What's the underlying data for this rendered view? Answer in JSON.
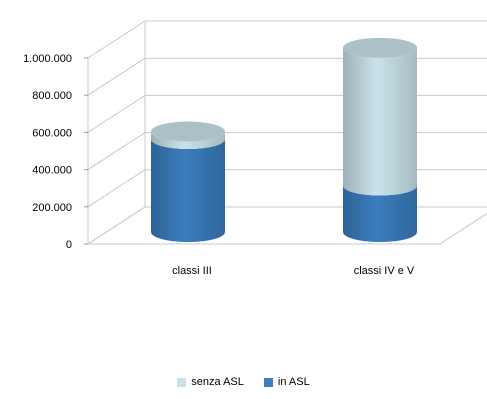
{
  "chart_data": {
    "type": "bar",
    "style": "3d-cylinder-stacked",
    "categories": [
      "classi III",
      "classi IV e V"
    ],
    "series": [
      {
        "name": "in ASL",
        "values": [
          500000,
          250000
        ],
        "color": "#3b7dbf"
      },
      {
        "name": "senza ASL",
        "values": [
          40000,
          740000
        ],
        "color": "#c9e3ea"
      }
    ],
    "ylim": [
      0,
      1000000
    ],
    "y_ticks": [
      "0",
      "200.000",
      "400.000",
      "600.000",
      "800.000",
      "1.000.000"
    ],
    "grid": true,
    "legend_position": "bottom"
  }
}
